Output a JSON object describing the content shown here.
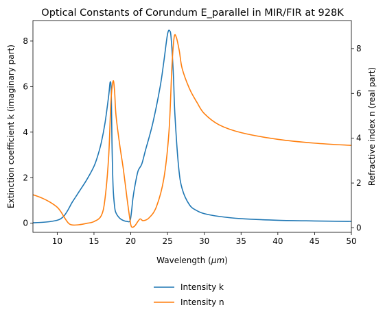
{
  "chart_data": {
    "type": "line",
    "title": "Optical Constants of Corundum E_parallel in MIR/FIR at 928K",
    "xlabel_text": "Wavelength (",
    "xlabel_math": "μm",
    "xlabel_close": ")",
    "ylabel_left": "Extinction coefficient k (imaginary part)",
    "ylabel_right": "Refractive index n (real part)",
    "xlim": [
      6.7,
      50
    ],
    "ylim_left": [
      -0.4,
      8.9
    ],
    "ylim_right": [
      -0.2,
      9.25
    ],
    "x_ticks": [
      10,
      15,
      20,
      25,
      30,
      35,
      40,
      45,
      50
    ],
    "y_ticks_left": [
      0,
      2,
      4,
      6,
      8
    ],
    "y_ticks_right": [
      0,
      2,
      4,
      6,
      8
    ],
    "grid": false,
    "legend_position": "bottom-center",
    "series": [
      {
        "name": "Intensity k",
        "axis": "left",
        "color": "#1f77b4",
        "x": [
          6.7,
          8,
          9,
          10,
          10.5,
          11,
          11.5,
          12,
          12.5,
          13,
          14,
          15,
          15.5,
          16,
          16.5,
          17,
          17.2,
          17.35,
          17.45,
          17.6,
          17.8,
          18,
          18.5,
          19,
          19.5,
          19.9,
          20.1,
          20.3,
          20.6,
          21,
          21.5,
          22,
          23,
          24,
          24.5,
          25,
          25.3,
          25.5,
          25.8,
          26,
          26.5,
          27,
          28,
          29,
          30,
          32,
          35,
          40,
          45,
          50
        ],
        "y": [
          0.02,
          0.04,
          0.07,
          0.13,
          0.2,
          0.35,
          0.6,
          0.9,
          1.15,
          1.4,
          1.9,
          2.5,
          2.95,
          3.55,
          4.4,
          5.6,
          6.2,
          5.8,
          3.5,
          1.6,
          0.75,
          0.45,
          0.22,
          0.12,
          0.08,
          0.1,
          0.5,
          1.1,
          1.7,
          2.3,
          2.6,
          3.2,
          4.4,
          6.0,
          7.1,
          8.3,
          8.45,
          8.1,
          6.5,
          4.8,
          2.5,
          1.5,
          0.8,
          0.55,
          0.42,
          0.3,
          0.2,
          0.13,
          0.1,
          0.08
        ]
      },
      {
        "name": "Intensity n",
        "axis": "right",
        "color": "#ff7f0e",
        "x": [
          6.7,
          8,
          9,
          10,
          10.5,
          11,
          11.5,
          12,
          13,
          14,
          15,
          16,
          16.5,
          17,
          17.3,
          17.6,
          17.8,
          18,
          18.5,
          19,
          19.5,
          19.9,
          20.1,
          20.5,
          21,
          21.3,
          21.7,
          22.5,
          23.5,
          24.5,
          25.2,
          25.6,
          25.9,
          26.2,
          26.6,
          27,
          28,
          29,
          30,
          32,
          35,
          40,
          45,
          50
        ],
        "y": [
          1.48,
          1.32,
          1.15,
          0.92,
          0.72,
          0.45,
          0.22,
          0.13,
          0.14,
          0.2,
          0.28,
          0.55,
          1.3,
          3.2,
          5.6,
          6.55,
          6.1,
          5.0,
          3.7,
          2.6,
          1.3,
          0.35,
          0.05,
          0.07,
          0.3,
          0.4,
          0.32,
          0.45,
          0.95,
          2.2,
          4.3,
          7.2,
          8.5,
          8.5,
          7.9,
          7.1,
          6.2,
          5.6,
          5.1,
          4.6,
          4.25,
          3.95,
          3.78,
          3.68
        ]
      }
    ]
  }
}
